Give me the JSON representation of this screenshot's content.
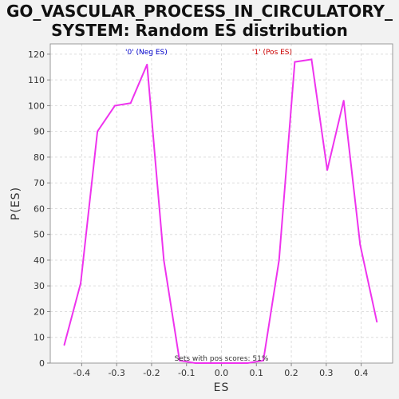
{
  "chart_data": {
    "type": "line",
    "title_lines": [
      "GO_VASCULAR_PROCESS_IN_CIRCULATORY_",
      "SYSTEM: Random ES distribution"
    ],
    "xlabel": "ES",
    "ylabel": "P(ES)",
    "xlim": [
      -0.49,
      0.49
    ],
    "ylim": [
      0,
      124
    ],
    "xticks": [
      "-0.4",
      "-0.3",
      "-0.2",
      "-0.1",
      "0.0",
      "0.1",
      "0.2",
      "0.3",
      "0.4"
    ],
    "yticks": [
      "0",
      "10",
      "20",
      "30",
      "40",
      "50",
      "60",
      "70",
      "80",
      "90",
      "100",
      "110",
      "120"
    ],
    "grid": true,
    "series": [
      {
        "color": "#ee33ee",
        "x": [
          -0.45,
          -0.403,
          -0.355,
          -0.305,
          -0.26,
          -0.213,
          -0.165,
          -0.12,
          -0.075,
          0.0,
          0.075,
          0.12,
          0.165,
          0.21,
          0.258,
          0.303,
          0.35,
          0.397,
          0.445
        ],
        "y": [
          7,
          31,
          90,
          100,
          101,
          116,
          40,
          1,
          0,
          0,
          0,
          1,
          40,
          117,
          118,
          75,
          102,
          46,
          16
        ]
      }
    ],
    "annotations": [
      {
        "text": "'0' (Neg ES)",
        "color": "#0000cc",
        "x": -0.215
      },
      {
        "text": "'1' (Pos ES)",
        "color": "#cc0000",
        "x": 0.145
      }
    ],
    "pos_scores_text": "Sets with pos scores: 51%"
  }
}
